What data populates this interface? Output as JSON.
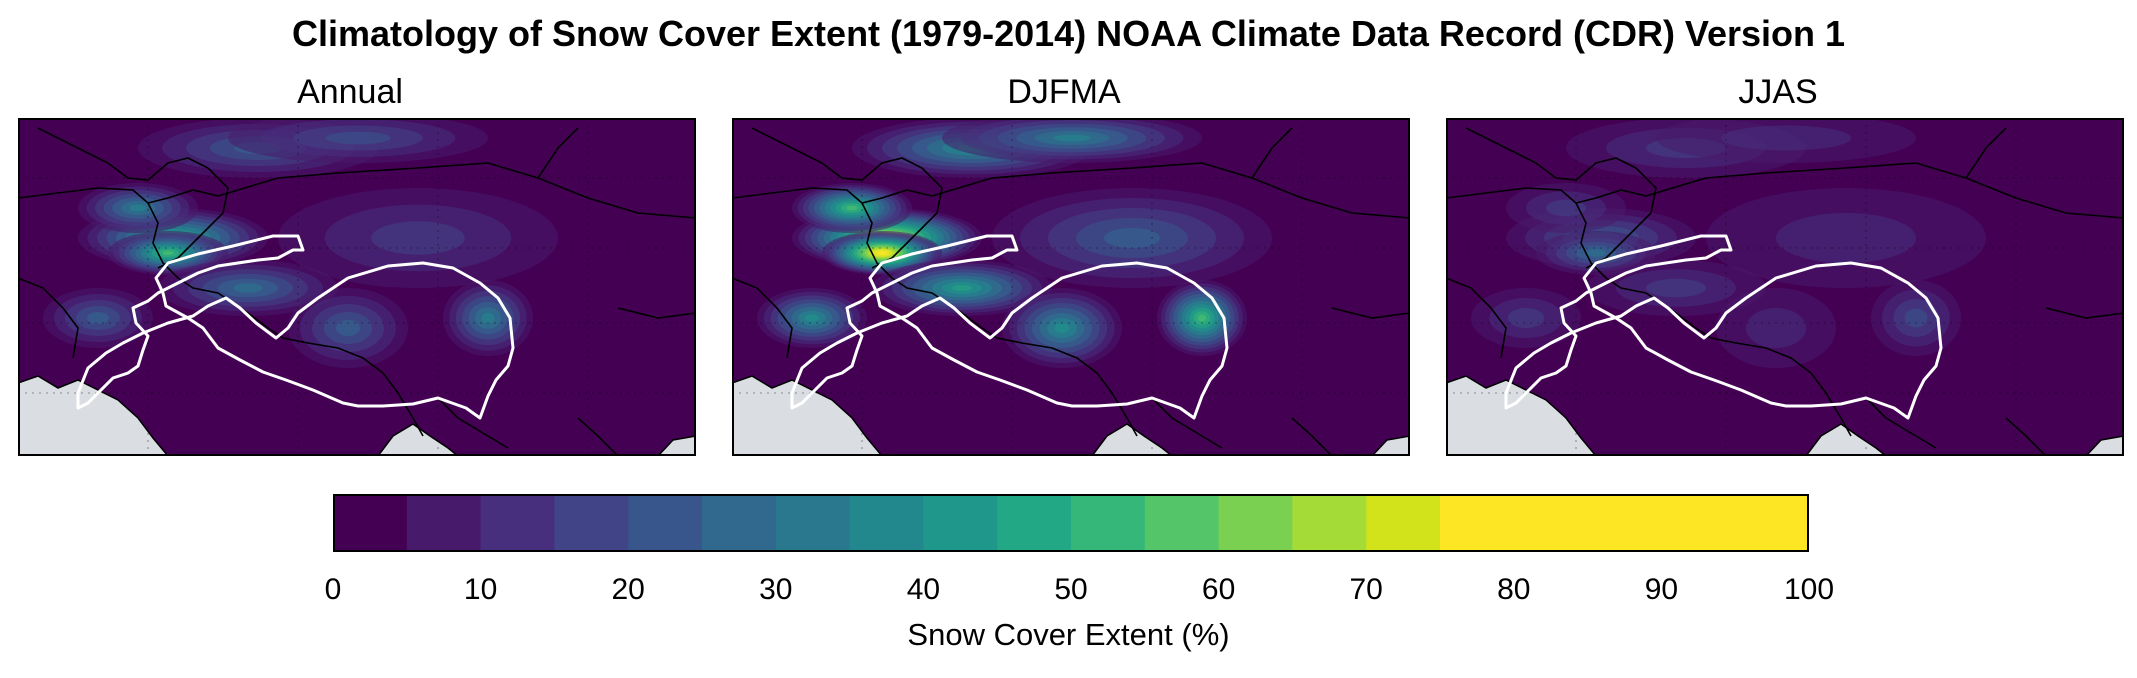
{
  "title": "Climatology of Snow Cover Extent (1979-2014) NOAA Climate Data Record (CDR) Version 1",
  "panels": [
    {
      "key": "annual",
      "title": "Annual",
      "intensity": 0.62
    },
    {
      "key": "djfma",
      "title": "DJFMA",
      "intensity": 0.95
    },
    {
      "key": "jjas",
      "title": "JJAS",
      "intensity": 0.3
    }
  ],
  "colorbar": {
    "label": "Snow Cover Extent (%)",
    "min": 0,
    "max": 100,
    "step": 5,
    "ticks": [
      "0",
      "10",
      "20",
      "30",
      "40",
      "50",
      "60",
      "70",
      "80",
      "90",
      "100"
    ],
    "colors": [
      "#440154",
      "#481a6c",
      "#472f7d",
      "#414487",
      "#39568c",
      "#31688e",
      "#2a788e",
      "#23888e",
      "#1f988b",
      "#22a884",
      "#35b779",
      "#54c568",
      "#7ad151",
      "#a5db36",
      "#d2e21b",
      "#fde725",
      "#fde725",
      "#fde725",
      "#fde725",
      "#fde725"
    ]
  },
  "colors": {
    "ocean": "#dadde2",
    "outline": "#ffffff",
    "border": "#000000"
  }
}
